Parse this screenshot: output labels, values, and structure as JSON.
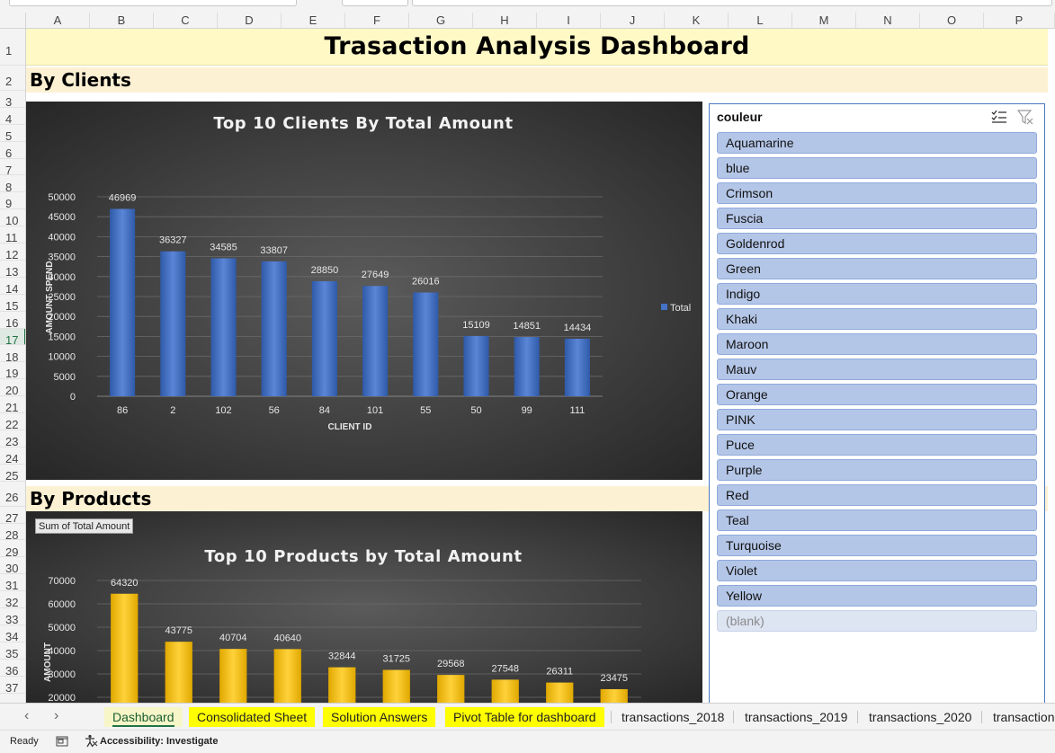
{
  "columns": [
    "A",
    "B",
    "C",
    "D",
    "E",
    "F",
    "G",
    "H",
    "I",
    "J",
    "K",
    "L",
    "M",
    "N",
    "O",
    "P"
  ],
  "rows": [
    "1",
    "2",
    "3",
    "4",
    "5",
    "6",
    "7",
    "8",
    "9",
    "10",
    "11",
    "12",
    "13",
    "14",
    "15",
    "16",
    "17",
    "18",
    "19",
    "20",
    "21",
    "22",
    "23",
    "24",
    "25",
    "26",
    "27",
    "28",
    "29",
    "30",
    "31",
    "32",
    "33",
    "34",
    "35",
    "36",
    "37"
  ],
  "selected_row": "17",
  "dashboard": {
    "title": "Trasaction Analysis Dashboard",
    "section_clients": "By Clients",
    "section_products": "By Products"
  },
  "pivot_field_button": "Sum of Total Amount",
  "chart_data": [
    {
      "type": "bar",
      "title": "Top 10 Clients By Total Amount",
      "xlabel": "CLIENT ID",
      "ylabel": "AMOUNT SPEND",
      "categories": [
        "86",
        "2",
        "102",
        "56",
        "84",
        "101",
        "55",
        "50",
        "99",
        "111"
      ],
      "series": [
        {
          "name": "Total",
          "values": [
            46969,
            36327,
            34585,
            33807,
            28850,
            27649,
            26016,
            15109,
            14851,
            14434
          ]
        }
      ],
      "yticks": [
        "0",
        "5000",
        "10000",
        "15000",
        "20000",
        "25000",
        "30000",
        "35000",
        "40000",
        "45000",
        "50000"
      ],
      "ylim": [
        0,
        50000
      ],
      "legend": "right",
      "grid": true,
      "color": "#4472c4"
    },
    {
      "type": "bar",
      "title": "Top 10 Products by Total Amount",
      "xlabel": "",
      "ylabel": "AMOUNT",
      "series": [
        {
          "values": [
            64320,
            43775,
            40704,
            40640,
            32844,
            31725,
            29568,
            27548,
            26311,
            23475
          ]
        }
      ],
      "yticks": [
        "20000",
        "30000",
        "40000",
        "50000",
        "60000",
        "70000"
      ],
      "ylim": [
        20000,
        70000
      ],
      "grid": true,
      "color": "#ffc000"
    }
  ],
  "slicer": {
    "title": "couleur",
    "items": [
      "Aquamarine",
      "blue",
      "Crimson",
      "Fuscia",
      "Goldenrod",
      "Green",
      "Indigo",
      "Khaki",
      "Maroon",
      "Mauv",
      "Orange",
      "PINK",
      "Puce",
      "Purple",
      "Red",
      "Teal",
      "Turquoise",
      "Violet",
      "Yellow",
      "(blank)"
    ]
  },
  "tabs": [
    "Dashboard",
    "Consolidated Sheet",
    "Solution Answers",
    "Pivot Table for dashboard",
    "transactions_2018",
    "transactions_2019",
    "transactions_2020",
    "transaction"
  ],
  "nav": {
    "prev": "‹",
    "next": "›"
  },
  "status": {
    "ready": "Ready",
    "accessibility": "Accessibility: Investigate"
  }
}
